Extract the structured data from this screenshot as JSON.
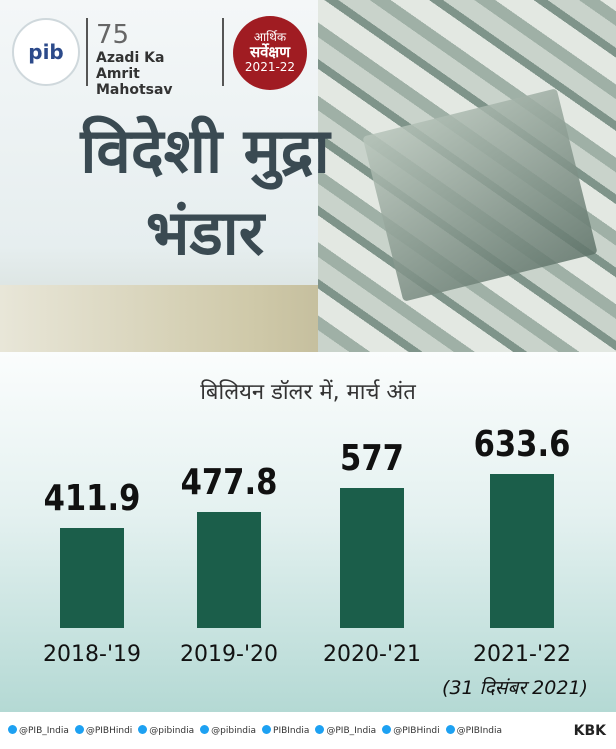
{
  "header": {
    "pib": "pib",
    "azadi": [
      "75",
      "Azadi Ka",
      "Amrit Mahotsav"
    ],
    "survey": [
      "आर्थिक",
      "सर्वेक्षण",
      "2021-22"
    ]
  },
  "chart_data": {
    "type": "bar",
    "title": "विदेशी मुद्रा भंडार",
    "subtitle": "बिलियन डॉलर में, मार्च अंत",
    "categories": [
      "2018-'19",
      "2019-'20",
      "2020-'21",
      "2021-'22"
    ],
    "values": [
      411.9,
      477.8,
      577,
      633.6
    ],
    "color": "#1b5e4a",
    "annotation": "(31 दिसंबर 2021)"
  },
  "footer": {
    "handles": [
      "@PIB_India",
      "@PIBHindi",
      "@pibindia",
      "@pibindia",
      "PIBIndia",
      "@PIB_India",
      "@PIBHindi",
      "@PIBIndia"
    ],
    "credit": "KBK"
  }
}
